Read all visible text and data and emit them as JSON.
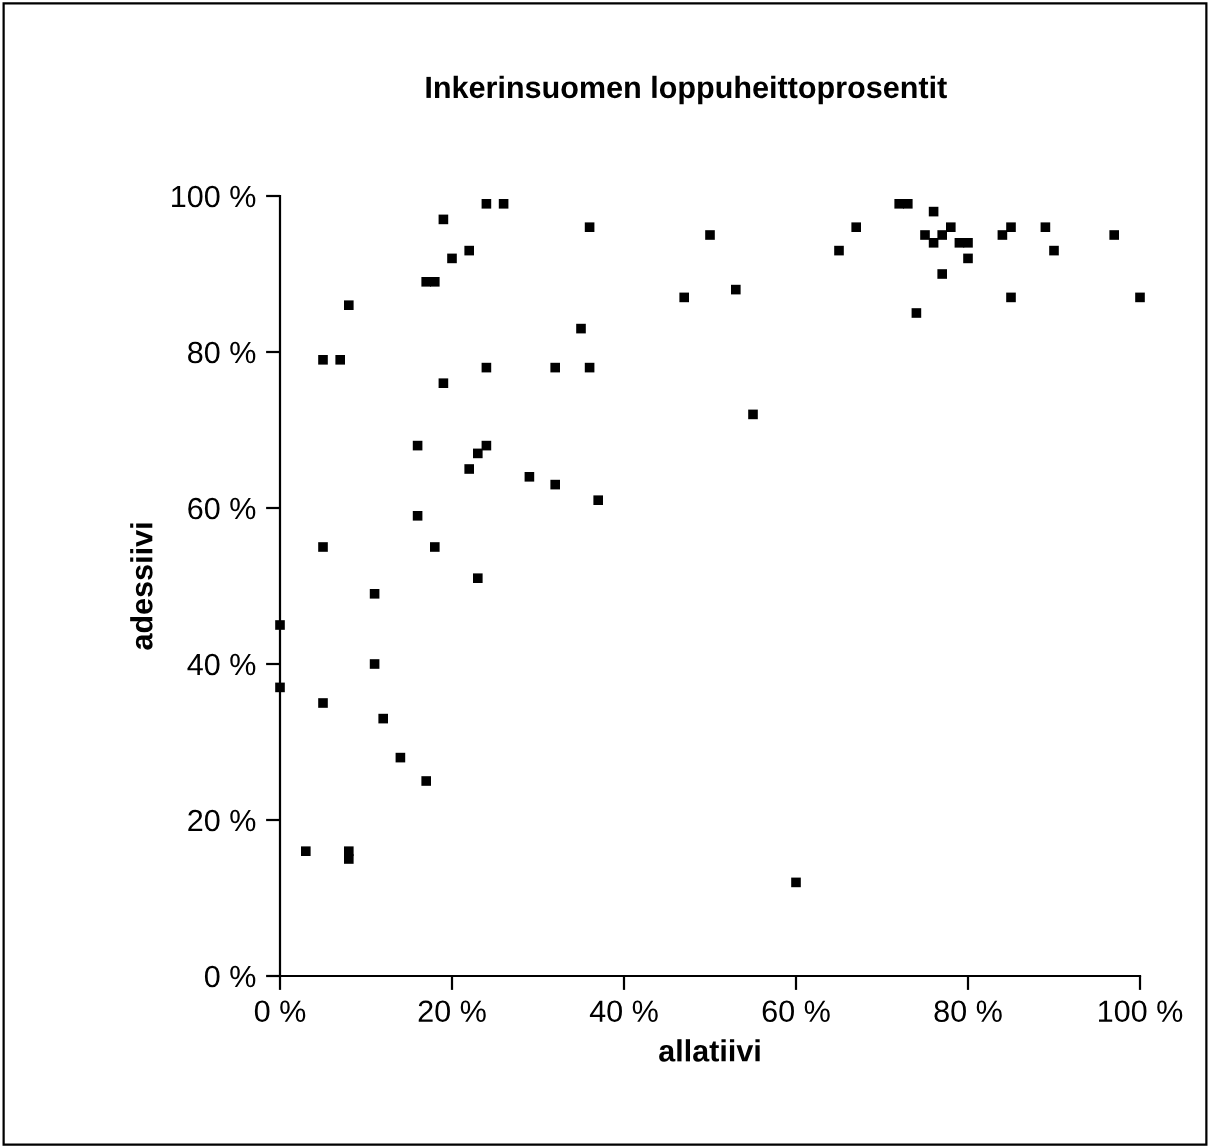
{
  "chart_data": {
    "type": "scatter",
    "title": "Inkerinsuomen loppuheittoprosentit",
    "xlabel": "allatiivi",
    "ylabel": "adessiivi",
    "x": [
      0,
      0,
      3,
      5,
      5,
      5,
      7,
      8,
      8,
      8,
      11,
      11,
      12,
      14,
      16,
      16,
      17,
      17,
      18,
      18,
      19,
      19,
      20,
      22,
      22,
      23,
      23,
      24,
      24,
      24,
      26,
      29,
      32,
      32,
      35,
      36,
      36,
      37,
      47,
      50,
      53,
      55,
      60,
      65,
      67,
      72,
      73,
      74,
      75,
      76,
      76,
      77,
      77,
      78,
      79,
      80,
      80,
      84,
      85,
      85,
      89,
      90,
      97,
      100
    ],
    "values": [
      45,
      37,
      16,
      79,
      55,
      35,
      79,
      86,
      16,
      15,
      49,
      40,
      33,
      28,
      68,
      59,
      89,
      25,
      89,
      55,
      97,
      76,
      92,
      93,
      65,
      67,
      51,
      99,
      78,
      68,
      99,
      64,
      78,
      63,
      83,
      96,
      78,
      61,
      87,
      95,
      88,
      72,
      12,
      93,
      96,
      99,
      99,
      85,
      95,
      98,
      94,
      95,
      90,
      96,
      94,
      94,
      92,
      95,
      96,
      87,
      96,
      93,
      95,
      87
    ],
    "color": "#000000",
    "marker": "square",
    "grid": false,
    "legend": false,
    "xlim": [
      0,
      100
    ],
    "ylim": [
      0,
      100
    ],
    "xticks": [
      {
        "value": 0,
        "label": "0 %"
      },
      {
        "value": 20,
        "label": "20 %"
      },
      {
        "value": 40,
        "label": "40 %"
      },
      {
        "value": 60,
        "label": "60 %"
      },
      {
        "value": 80,
        "label": "80 %"
      },
      {
        "value": 100,
        "label": "100 %"
      }
    ],
    "yticks": [
      {
        "value": 0,
        "label": "0 %"
      },
      {
        "value": 20,
        "label": "20 %"
      },
      {
        "value": 40,
        "label": "40 %"
      },
      {
        "value": 60,
        "label": "60 %"
      },
      {
        "value": 80,
        "label": "80 %"
      },
      {
        "value": 100,
        "label": "100 %"
      }
    ]
  }
}
